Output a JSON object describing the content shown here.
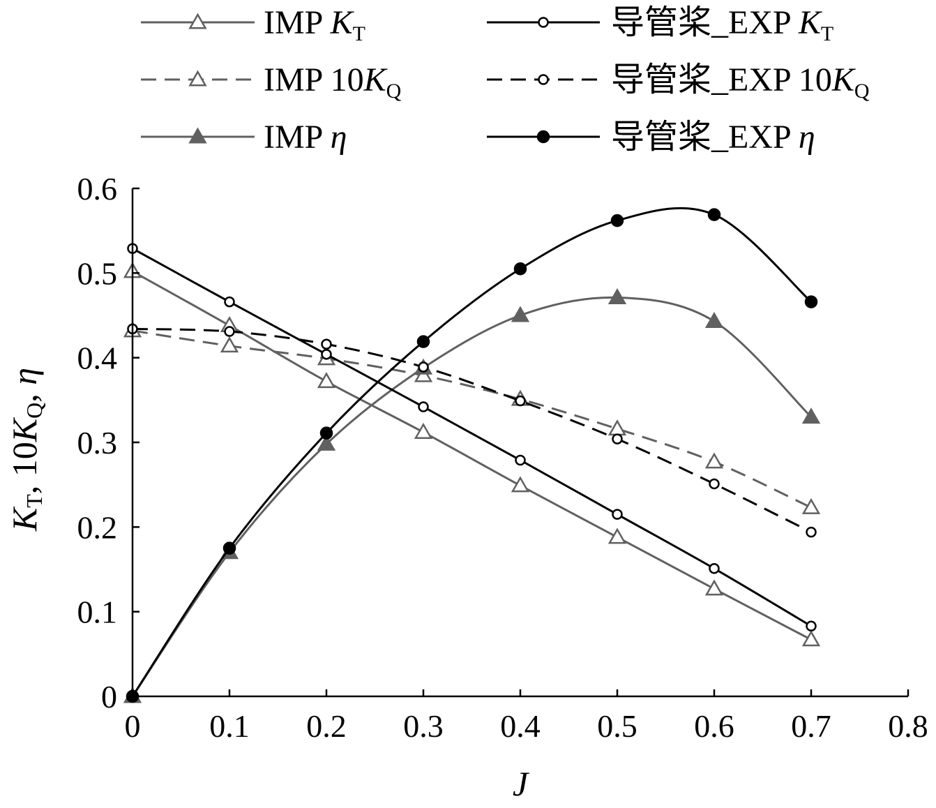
{
  "chart_data": {
    "type": "line",
    "xlabel": "J",
    "ylabel": "K_T, 10K_Q, η",
    "xlim": [
      0,
      0.8
    ],
    "ylim": [
      0,
      0.6
    ],
    "xticks": [
      "0",
      "0.1",
      "0.2",
      "0.3",
      "0.4",
      "0.5",
      "0.6",
      "0.7",
      "0.8"
    ],
    "yticks": [
      "0",
      "0.1",
      "0.2",
      "0.3",
      "0.4",
      "0.5",
      "0.6"
    ],
    "grid": false,
    "legend_position": "top",
    "series": [
      {
        "name": "IMP K_T",
        "label_main": "IMP ",
        "label_sym": "K",
        "label_sub": "T",
        "color": "#606060",
        "dash": "solid",
        "marker": "triangle-open",
        "x": [
          0,
          0.1,
          0.2,
          0.3,
          0.4,
          0.5,
          0.6,
          0.7
        ],
        "y": [
          0.502,
          0.438,
          0.372,
          0.312,
          0.249,
          0.188,
          0.127,
          0.067
        ]
      },
      {
        "name": "IMP 10K_Q",
        "label_main": "IMP 10",
        "label_sym": "K",
        "label_sub": "Q",
        "color": "#606060",
        "dash": "dashed",
        "marker": "triangle-open",
        "x": [
          0,
          0.1,
          0.2,
          0.3,
          0.4,
          0.5,
          0.6,
          0.7
        ],
        "y": [
          0.432,
          0.414,
          0.399,
          0.379,
          0.351,
          0.316,
          0.277,
          0.223
        ]
      },
      {
        "name": "IMP η",
        "label_main": "IMP ",
        "label_sym": "η",
        "label_sub": "",
        "color": "#606060",
        "dash": "solid",
        "marker": "triangle-filled",
        "x": [
          0,
          0.1,
          0.2,
          0.3,
          0.4,
          0.5,
          0.6,
          0.7
        ],
        "y": [
          0.0,
          0.17,
          0.298,
          0.388,
          0.45,
          0.471,
          0.443,
          0.33
        ]
      },
      {
        "name": "导管桨_EXP K_T",
        "label_main": "导管桨_EXP ",
        "label_sym": "K",
        "label_sub": "T",
        "color": "#000000",
        "dash": "solid",
        "marker": "circle-open",
        "x": [
          0,
          0.1,
          0.2,
          0.3,
          0.4,
          0.5,
          0.6,
          0.7
        ],
        "y": [
          0.529,
          0.466,
          0.404,
          0.342,
          0.279,
          0.215,
          0.151,
          0.083
        ]
      },
      {
        "name": "导管桨_EXP 10K_Q",
        "label_main": "导管桨_EXP 10",
        "label_sym": "K",
        "label_sub": "Q",
        "color": "#000000",
        "dash": "dashed",
        "marker": "circle-open",
        "x": [
          0,
          0.1,
          0.2,
          0.3,
          0.4,
          0.5,
          0.6,
          0.7
        ],
        "y": [
          0.434,
          0.431,
          0.416,
          0.389,
          0.349,
          0.304,
          0.251,
          0.194
        ]
      },
      {
        "name": "导管桨_EXP η",
        "label_main": "导管桨_EXP ",
        "label_sym": "η",
        "label_sub": "",
        "color": "#000000",
        "dash": "solid",
        "marker": "circle-filled",
        "x": [
          0,
          0.1,
          0.2,
          0.3,
          0.4,
          0.5,
          0.6,
          0.7
        ],
        "y": [
          0.0,
          0.175,
          0.311,
          0.419,
          0.505,
          0.562,
          0.569,
          0.466
        ]
      }
    ]
  }
}
